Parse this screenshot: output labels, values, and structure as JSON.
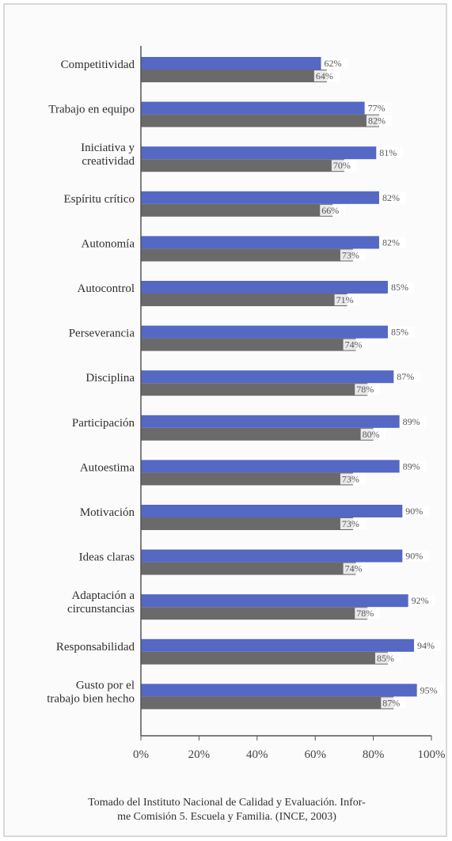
{
  "colors": {
    "series_a": "#5468c4",
    "series_b": "#6a6a6a",
    "axis": "#555555"
  },
  "chart_data": {
    "type": "bar",
    "orientation": "horizontal",
    "categories": [
      "Competitividad",
      "Trabajo en equipo",
      "Iniciativa y creatividad",
      "Espíritu crítico",
      "Autonomía",
      "Autocontrol",
      "Perseverancia",
      "Disciplina",
      "Participación",
      "Autoestima",
      "Motivación",
      "Ideas claras",
      "Adaptación a circunstancias",
      "Responsabilidad",
      "Gusto por el trabajo bien hecho"
    ],
    "category_lines": [
      [
        "Competitividad"
      ],
      [
        "Trabajo en equipo"
      ],
      [
        "Iniciativa y",
        "creatividad"
      ],
      [
        "Espíritu crítico"
      ],
      [
        "Autonomía"
      ],
      [
        "Autocontrol"
      ],
      [
        "Perseverancia"
      ],
      [
        "Disciplina"
      ],
      [
        "Participación"
      ],
      [
        "Autoestima"
      ],
      [
        "Motivación"
      ],
      [
        "Ideas claras"
      ],
      [
        "Adaptación a",
        "circunstancias"
      ],
      [
        "Responsabilidad"
      ],
      [
        "Gusto por el",
        "trabajo bien hecho"
      ]
    ],
    "series": [
      {
        "values": [
          62,
          77,
          81,
          82,
          82,
          85,
          85,
          87,
          89,
          89,
          90,
          90,
          92,
          94,
          95
        ]
      },
      {
        "values": [
          64,
          82,
          70,
          66,
          73,
          71,
          74,
          78,
          80,
          73,
          73,
          74,
          78,
          85,
          87
        ]
      }
    ],
    "value_suffix": "%",
    "xticks": [
      "0%",
      "20%",
      "40%",
      "60%",
      "80%",
      "100%"
    ],
    "xlim": [
      0,
      100
    ],
    "grid": false,
    "legend": "none"
  },
  "caption": {
    "line1": "Tomado del Instituto Nacional de Calidad y Evaluación. Infor-",
    "line2": "me Comisión 5. Escuela y Familia. (INCE, 2003)"
  }
}
